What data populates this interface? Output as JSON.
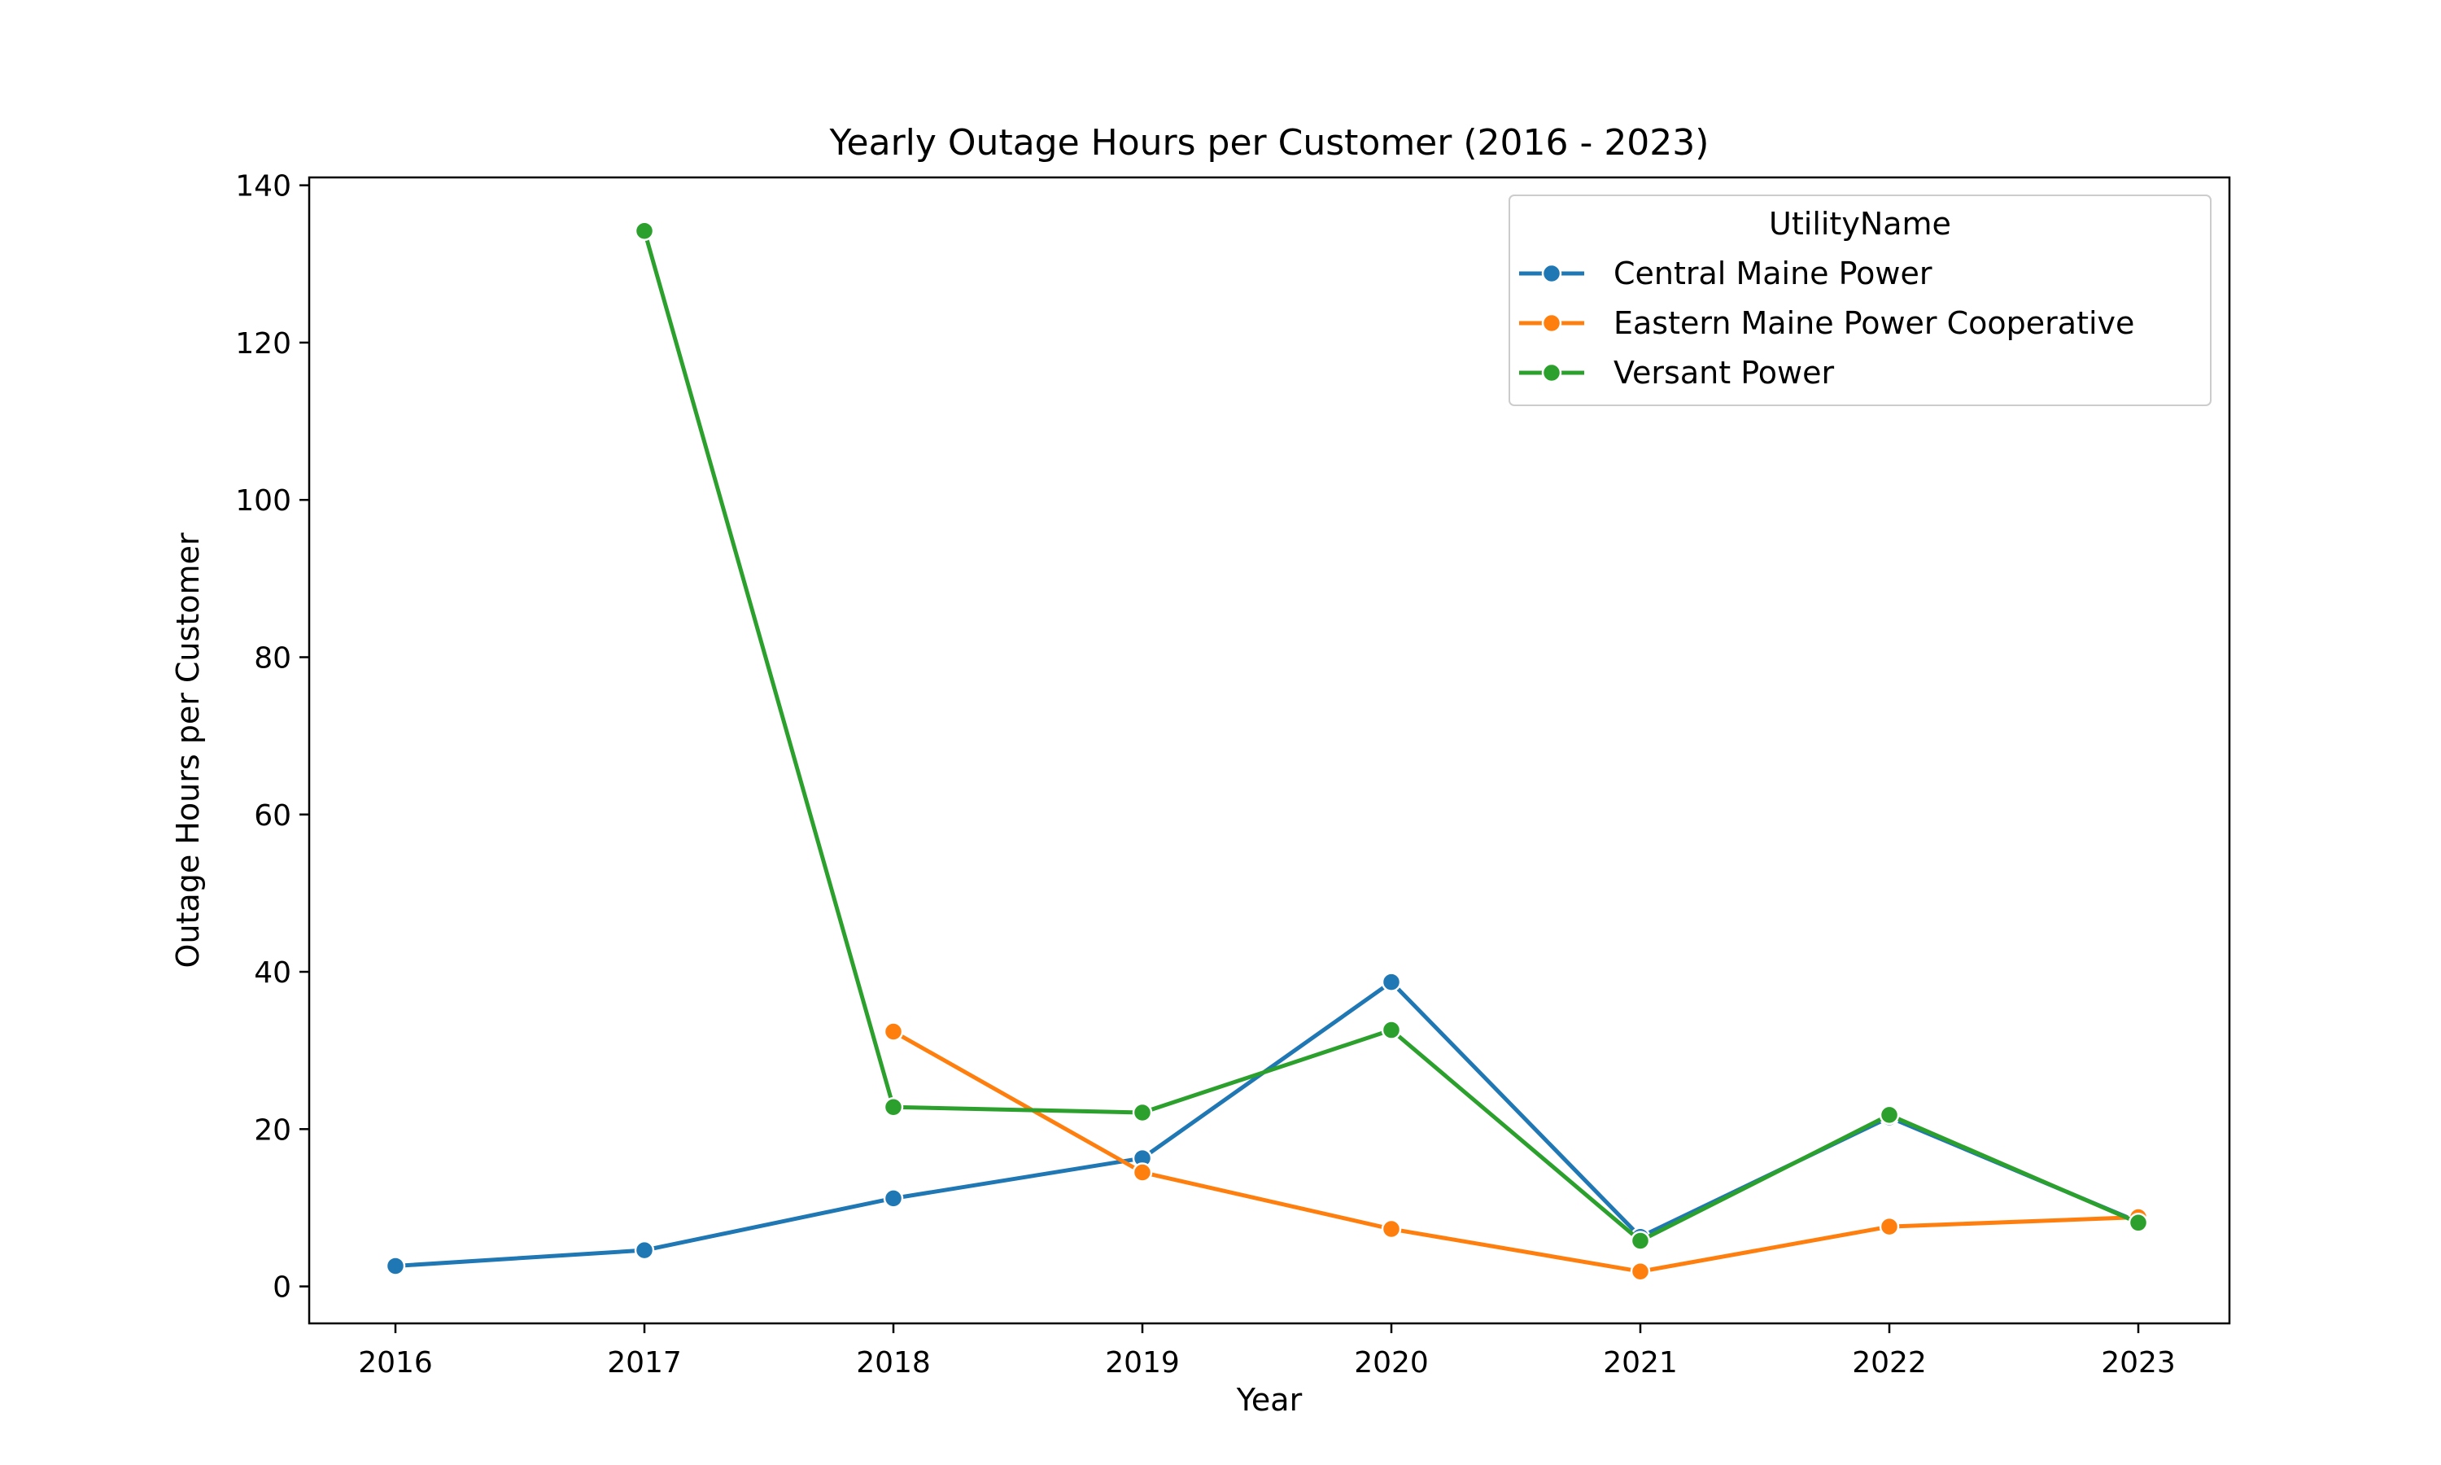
{
  "chart_data": {
    "type": "line",
    "title": "Yearly Outage Hours per Customer (2016 - 2023)",
    "xlabel": "Year",
    "ylabel": "Outage Hours per Customer",
    "x": [
      "2016",
      "2017",
      "2018",
      "2019",
      "2020",
      "2021",
      "2022",
      "2023"
    ],
    "xticks": [
      "2016",
      "2017",
      "2018",
      "2019",
      "2020",
      "2021",
      "2022",
      "2023"
    ],
    "yticks": [
      "0",
      "20",
      "40",
      "60",
      "80",
      "100",
      "120",
      "140"
    ],
    "ylim": [
      -4.7,
      141
    ],
    "grid": false,
    "legend": {
      "title": "UtilityName",
      "placement": "top-right"
    },
    "series": [
      {
        "name": "Central Maine Power",
        "color": "#1f77b4",
        "values": [
          2.6,
          4.6,
          11.2,
          16.3,
          38.7,
          6.3,
          21.5,
          8.2
        ]
      },
      {
        "name": "Eastern Maine Power Cooperative",
        "color": "#ff7f0e",
        "values": [
          null,
          null,
          32.4,
          14.5,
          7.3,
          1.9,
          7.6,
          8.8
        ]
      },
      {
        "name": "Versant Power",
        "color": "#2ca02c",
        "values": [
          null,
          134.2,
          22.8,
          22.1,
          32.6,
          5.8,
          21.8,
          8.1
        ]
      }
    ]
  }
}
